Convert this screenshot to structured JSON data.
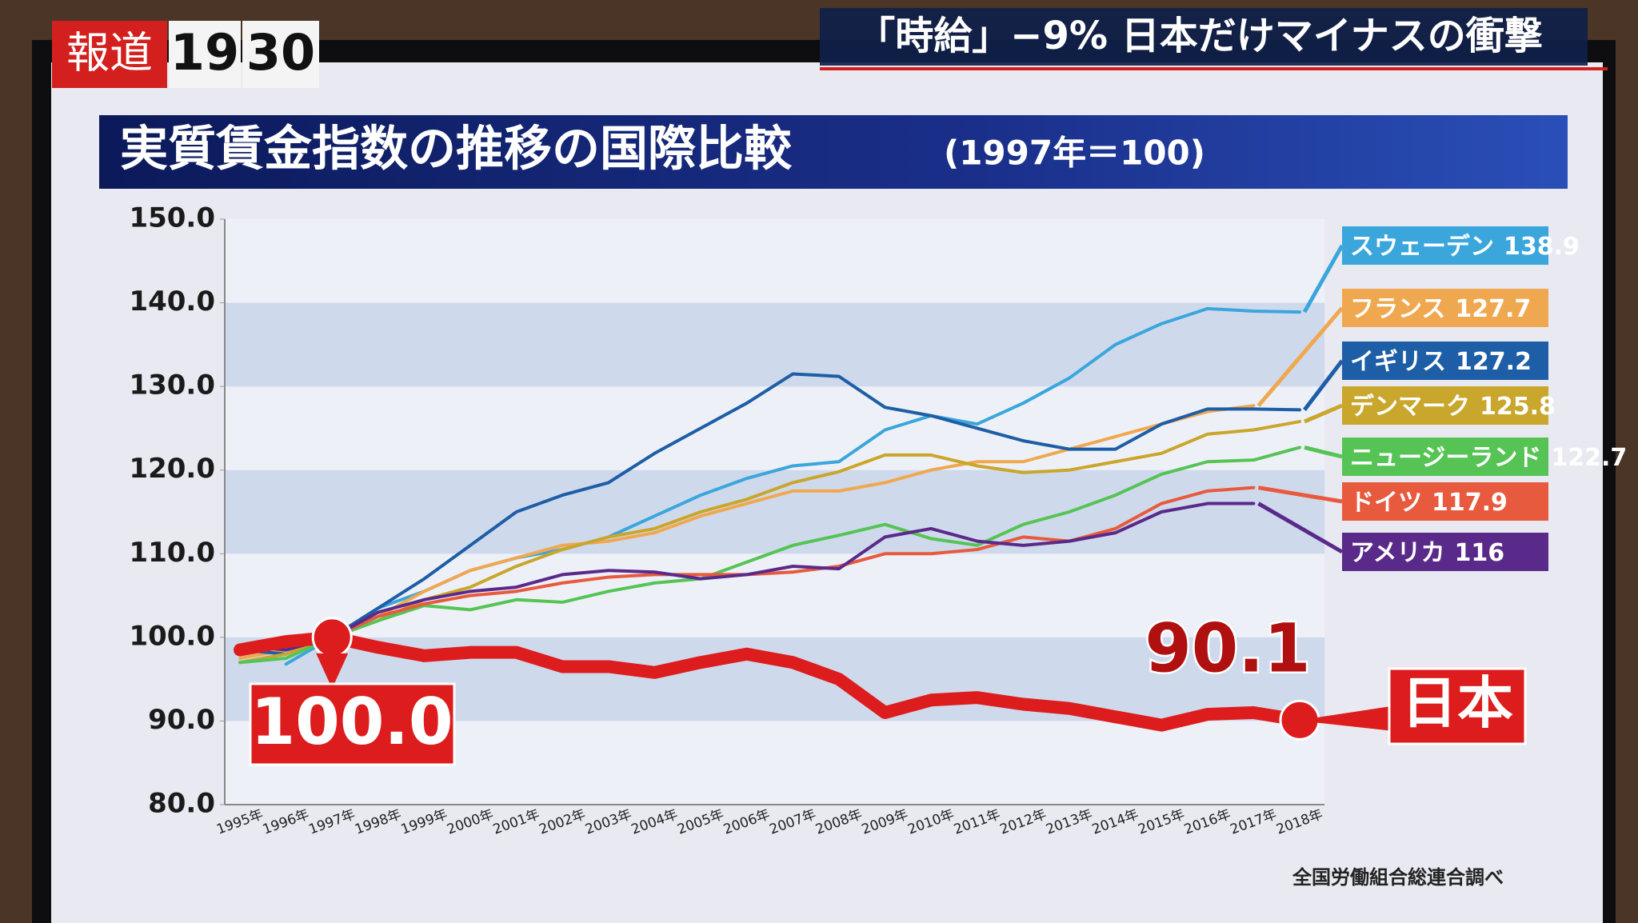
{
  "broadcast": {
    "logo": [
      "報道",
      "19",
      "30"
    ],
    "headline": "「時給」−9%  日本だけマイナスの衝撃"
  },
  "chart_data": {
    "type": "line",
    "title": "実質賃金指数の推移の国際比較",
    "subtitle": "(1997年＝100)",
    "source": "全国労働組合総連合調べ",
    "categories": [
      "1995年",
      "1996年",
      "1997年",
      "1998年",
      "1999年",
      "2000年",
      "2001年",
      "2002年",
      "2003年",
      "2004年",
      "2005年",
      "2006年",
      "2007年",
      "2008年",
      "2009年",
      "2010年",
      "2011年",
      "2012年",
      "2013年",
      "2014年",
      "2015年",
      "2016年",
      "2017年",
      "2018年"
    ],
    "ylim": [
      80,
      150
    ],
    "yticks": [
      {
        "value": 80,
        "label": "80.0"
      },
      {
        "value": 90,
        "label": "90.0"
      },
      {
        "value": 100,
        "label": "100.0"
      },
      {
        "value": 110,
        "label": "110.0"
      },
      {
        "value": 120,
        "label": "120.0"
      },
      {
        "value": 130,
        "label": "130.0"
      },
      {
        "value": 140,
        "label": "140.0"
      },
      {
        "value": 150,
        "label": "150.0"
      }
    ],
    "grid": "bands",
    "series": [
      {
        "name": "スウェーデン",
        "color": "#3aa6dc",
        "values": [
          null,
          96.8,
          100,
          103.5,
          105.5,
          108,
          109.5,
          110.5,
          112,
          114.5,
          117,
          119,
          120.5,
          121,
          124.8,
          126.5,
          125.5,
          128,
          131,
          135,
          137.5,
          139.3,
          139,
          138.9
        ]
      },
      {
        "name": "フランス",
        "color": "#f0a850",
        "values": [
          97.5,
          98.5,
          100,
          102.5,
          105.5,
          108,
          109.5,
          111,
          111.5,
          112.5,
          114.5,
          116,
          117.5,
          117.5,
          118.5,
          120,
          121,
          121,
          122.5,
          124,
          125.5,
          127,
          127.7,
          null
        ]
      },
      {
        "name": "イギリス",
        "color": "#1d5ea6",
        "values": [
          98.5,
          98,
          100,
          103.5,
          107,
          111,
          115,
          117,
          118.5,
          122,
          125,
          128,
          131.5,
          131.2,
          127.5,
          126.5,
          125,
          123.5,
          122.5,
          122.5,
          125.5,
          127.3,
          127.3,
          127.2
        ]
      },
      {
        "name": "デンマーク",
        "color": "#c9a62c",
        "values": [
          97,
          98,
          100,
          102,
          104.5,
          106,
          108.5,
          110.5,
          112,
          113,
          115,
          116.5,
          118.5,
          119.8,
          121.8,
          121.8,
          120.5,
          119.7,
          120,
          121,
          122,
          124.3,
          124.8,
          125.8
        ]
      },
      {
        "name": "ニュージーランド",
        "color": "#55c455",
        "values": [
          97,
          97.5,
          100,
          102,
          103.8,
          103.3,
          104.5,
          104.2,
          105.5,
          106.5,
          107,
          109,
          111,
          112.2,
          113.5,
          111.8,
          111,
          113.5,
          115,
          117,
          119.5,
          121,
          121.2,
          122.7
        ]
      },
      {
        "name": "ドイツ",
        "color": "#e85a3e",
        "values": [
          99,
          98.5,
          100,
          102.5,
          104,
          105,
          105.5,
          106.5,
          107.2,
          107.5,
          107.5,
          107.5,
          107.8,
          108.5,
          110,
          110,
          110.5,
          112,
          111.5,
          113,
          116,
          117.5,
          117.9,
          null
        ]
      },
      {
        "name": "アメリカ",
        "color": "#5a2a8a",
        "values": [
          99,
          98.5,
          100,
          103,
          104.5,
          105.5,
          106,
          107.5,
          108,
          107.8,
          107,
          107.5,
          108.5,
          108.2,
          112,
          113,
          111.5,
          111,
          111.5,
          112.5,
          115,
          116,
          116.0,
          null
        ]
      },
      {
        "name": "日本",
        "color": "#dd1d1d",
        "values": [
          98.5,
          99.5,
          100,
          98.8,
          97.8,
          98.2,
          98.2,
          96.5,
          96.5,
          95.8,
          97,
          98,
          97,
          95,
          91,
          92.5,
          92.8,
          92,
          91.5,
          90.5,
          89.5,
          90.8,
          91,
          90.1
        ],
        "value_labels": [
          null,
          null,
          "100.0",
          null,
          null,
          null,
          null,
          null,
          null,
          null,
          null,
          null,
          null,
          null,
          null,
          null,
          null,
          null,
          null,
          null,
          null,
          null,
          null,
          "90.1"
        ]
      }
    ]
  }
}
